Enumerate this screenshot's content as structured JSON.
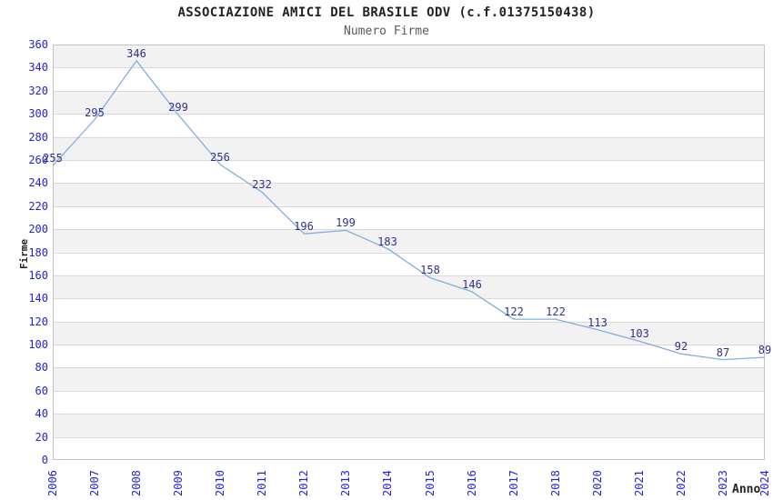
{
  "chart_data": {
    "type": "line",
    "title": "ASSOCIAZIONE AMICI DEL BRASILE ODV (c.f.01375150438)",
    "subtitle": "Numero Firme",
    "xlabel": "Anno",
    "ylabel": "Firme",
    "categories": [
      "2006",
      "2007",
      "2008",
      "2009",
      "2010",
      "2011",
      "2012",
      "2013",
      "2014",
      "2015",
      "2016",
      "2017",
      "2018",
      "2020",
      "2021",
      "2022",
      "2023",
      "2024"
    ],
    "series": [
      {
        "name": "Numero Firme",
        "values": [
          255,
          295,
          346,
          299,
          256,
          232,
          196,
          199,
          183,
          158,
          146,
          122,
          122,
          113,
          103,
          92,
          87,
          89
        ]
      }
    ],
    "data_labels_visible": true,
    "ylim": [
      0,
      360
    ],
    "ytick_step": 20,
    "grid": "horizontal",
    "background_bands": "alternating gray/white every 20 units, gray band at top (340-360)",
    "legend_position": "none",
    "colors": {
      "line": "#7fafdf",
      "tick_label": "#2424cf",
      "data_label": "#30308c",
      "band_gray": "#f2f2f2",
      "gridline": "#d9d9d9",
      "plot_border": "#c4c4c4",
      "title": "#222222",
      "subtitle": "#5a5a5a",
      "axis_name": "#222222"
    }
  }
}
